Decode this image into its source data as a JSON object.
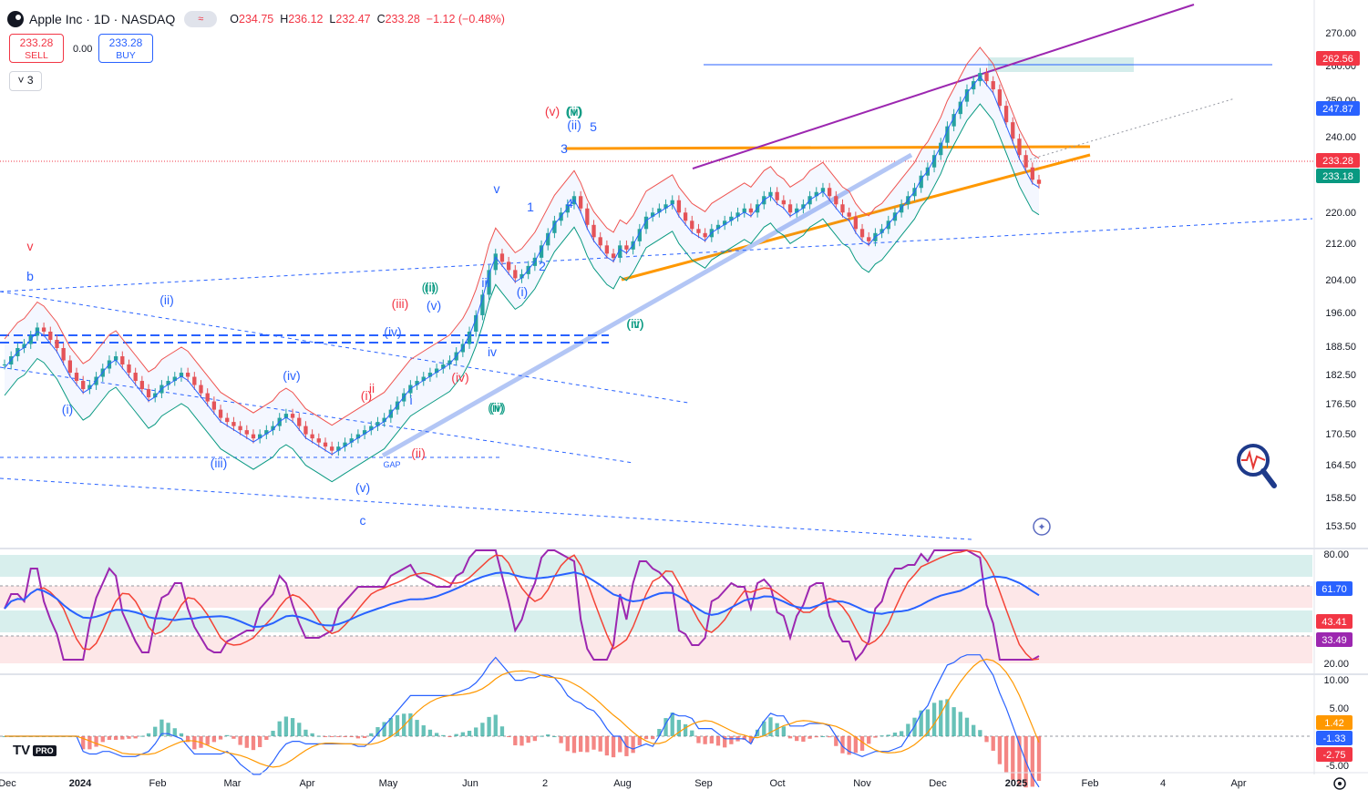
{
  "header": {
    "symbol": "Apple Inc · 1D · NASDAQ",
    "pill": "≈",
    "open_label": "O",
    "open": "234.75",
    "high_label": "H",
    "high": "236.12",
    "low_label": "L",
    "low": "232.47",
    "close_label": "C",
    "close": "233.28",
    "change": "−1.12 (−0.48%)"
  },
  "trade": {
    "sell_price": "233.28",
    "sell_label": "SELL",
    "spread": "0.00",
    "buy_price": "233.28",
    "buy_label": "BUY"
  },
  "indicators_toggle": "˅ 3",
  "tv_badge": "PRO",
  "colors": {
    "up": "#26a69a",
    "down": "#ef5350",
    "accent": "#2962ff",
    "orange": "#ff9800",
    "purple": "#9c27b0",
    "rsi": "#7e57c2"
  },
  "chart_data": [
    {
      "type": "candlestick",
      "ylim": [
        150,
        272
      ],
      "y_ticks": [
        "270.00",
        "260.00",
        "250.00",
        "240.00",
        "233.18",
        "220.00",
        "212.00",
        "204.00",
        "196.00",
        "188.50",
        "182.50",
        "176.50",
        "170.50",
        "164.50",
        "158.50",
        "153.50"
      ],
      "x_ticks": [
        "Dec",
        "2024",
        "Feb",
        "Mar",
        "Apr",
        "May",
        "Jun",
        "2",
        "Aug",
        "Sep",
        "Oct",
        "Nov",
        "Dec",
        "2025",
        "Feb",
        "4",
        "Apr"
      ],
      "price_tags": [
        {
          "label": "262.56",
          "color": "#f23645"
        },
        {
          "label": "247.87",
          "color": "#2962ff"
        },
        {
          "label": "233.28",
          "color": "#f23645"
        },
        {
          "label": "233.18",
          "color": "#089981"
        }
      ],
      "close_series": [
        189,
        191,
        193,
        194,
        196,
        198,
        197,
        195,
        193,
        190,
        187,
        185,
        183,
        184,
        186,
        188,
        190,
        191,
        189,
        187,
        185,
        183,
        181,
        182,
        184,
        185,
        186,
        187,
        186,
        184,
        182,
        180,
        178,
        176,
        175,
        174,
        173,
        172,
        171,
        172,
        173,
        174,
        176,
        177,
        176,
        174,
        172,
        171,
        170,
        169,
        168,
        169,
        170,
        171,
        172,
        173,
        174,
        175,
        176,
        178,
        180,
        182,
        184,
        185,
        186,
        187,
        188,
        189,
        190,
        192,
        194,
        197,
        201,
        206,
        212,
        216,
        214,
        212,
        210,
        211,
        213,
        215,
        218,
        221,
        224,
        226,
        228,
        230,
        227,
        223,
        220,
        218,
        216,
        215,
        218,
        217,
        219,
        222,
        225,
        226,
        227,
        228,
        229,
        226,
        224,
        222,
        221,
        220,
        222,
        223,
        224,
        225,
        226,
        227,
        226,
        228,
        230,
        231,
        229,
        228,
        226,
        227,
        228,
        230,
        231,
        232,
        230,
        228,
        226,
        225,
        222,
        220,
        219,
        221,
        222,
        224,
        226,
        228,
        230,
        232,
        235,
        237,
        240,
        243,
        247,
        250,
        253,
        256,
        258,
        260,
        258,
        256,
        252,
        248,
        244,
        240,
        237,
        234,
        233
      ],
      "wave_labels": [
        "(i)",
        "(ii)",
        "(iii)",
        "(iv)",
        "(v)",
        "c",
        "b",
        "v",
        "(i)",
        "(ii)",
        "(iii)",
        "(iv)",
        "(v)",
        "(i)",
        "(ii)",
        "(iii)",
        "(iv)",
        "(v)",
        "GAP",
        "i",
        "ii",
        "iii",
        "iv",
        "v",
        "(i)",
        "(ii)",
        "(iii)",
        "(iv)",
        "(v)",
        "(iii)",
        "1",
        "2",
        "3",
        "4",
        "5",
        "(iv)",
        "(i)",
        "(ii)"
      ]
    },
    {
      "type": "line",
      "name": "RSI",
      "ylim": [
        15,
        85
      ],
      "y_ticks": [
        "80.00",
        "20.00"
      ],
      "value_tags": [
        {
          "label": "61.70",
          "color": "#2962ff"
        },
        {
          "label": "43.41",
          "color": "#f23645"
        },
        {
          "label": "33.49",
          "color": "#9c27b0"
        }
      ]
    },
    {
      "type": "bar",
      "name": "MACD",
      "ylim": [
        -6,
        11
      ],
      "y_ticks": [
        "10.00",
        "5.00",
        "-5.00"
      ],
      "value_tags": [
        {
          "label": "1.42",
          "color": "#ff9800"
        },
        {
          "label": "-1.33",
          "color": "#2962ff"
        },
        {
          "label": "-2.75",
          "color": "#f23645"
        }
      ]
    }
  ]
}
